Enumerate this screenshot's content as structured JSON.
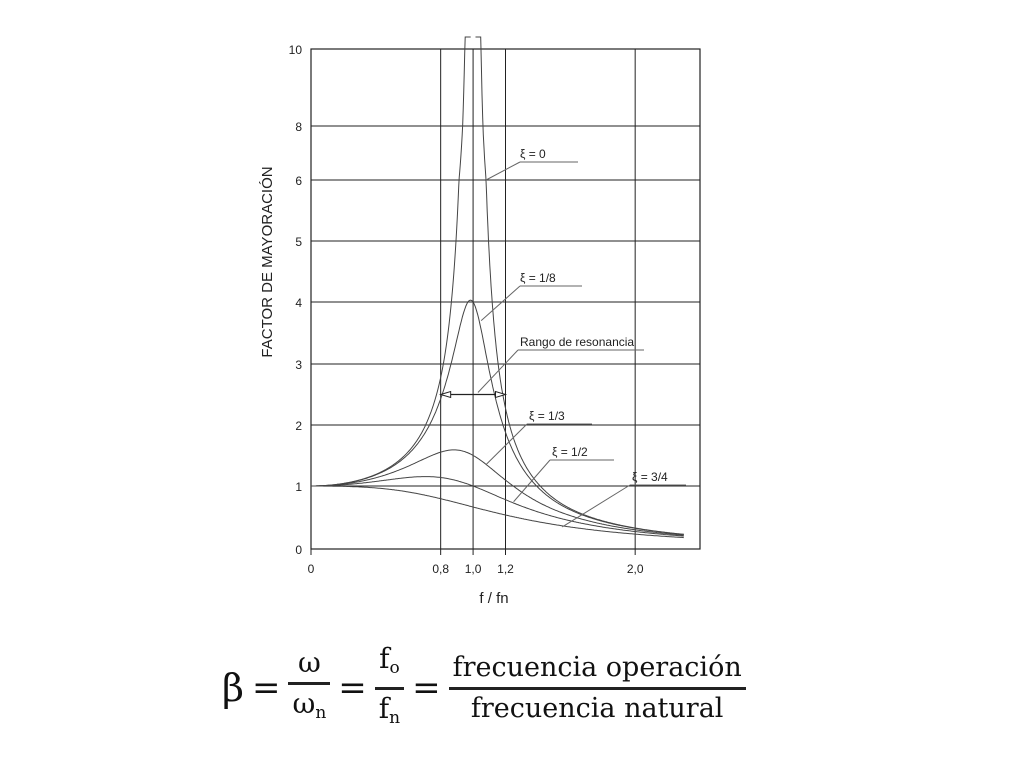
{
  "chart_data": {
    "type": "line",
    "xlabel": "f / fn",
    "ylabel": "FACTOR DE MAYORACIÓN",
    "xlim": [
      0,
      2.4
    ],
    "ylim": [
      0,
      10
    ],
    "y_scale": "nonlinear (uneven tick spacing as printed)",
    "x_ticks": [
      0,
      0.8,
      1.0,
      1.2,
      2.0
    ],
    "x_tick_labels": [
      "0",
      "0,8",
      "1,0",
      "1,2",
      "2,0"
    ],
    "y_ticks": [
      0,
      1,
      2,
      3,
      4,
      5,
      6,
      8,
      10
    ],
    "y_tick_labels": [
      "0",
      "1",
      "2",
      "3",
      "4",
      "5",
      "6",
      "8",
      "10"
    ],
    "grid": true,
    "series": [
      {
        "name": "ξ = 0",
        "zeta": 0
      },
      {
        "name": "ξ = 1/8",
        "zeta": 0.125
      },
      {
        "name": "ξ = 1/3",
        "zeta": 0.333
      },
      {
        "name": "ξ = 1/2",
        "zeta": 0.5
      },
      {
        "name": "ξ = 3/4",
        "zeta": 0.75
      }
    ],
    "annotations": [
      {
        "text": "Rango de resonancia",
        "x_range": [
          0.8,
          1.2
        ],
        "y": 2.5
      }
    ]
  },
  "formula": {
    "beta": "β",
    "eq": "=",
    "omega": "ω",
    "omega_n": "ω",
    "omega_n_sub": "n",
    "f0": "f",
    "f0_sub": "o",
    "fn": "f",
    "fn_sub": "n",
    "text_num": "frecuencia operación",
    "text_den": "frecuencia natural"
  }
}
